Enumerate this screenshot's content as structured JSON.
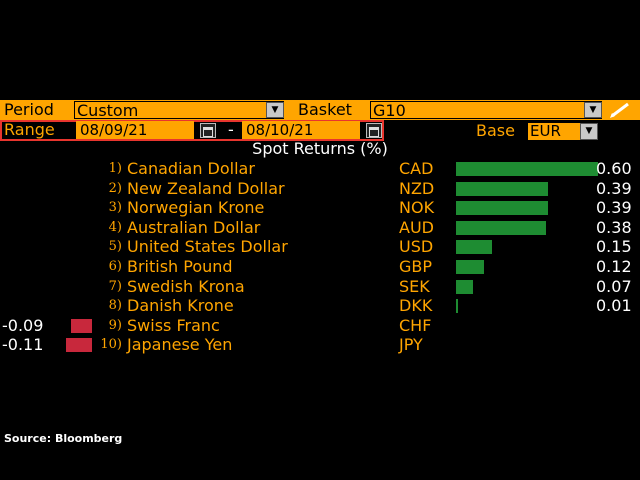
{
  "toolbar": {
    "period_label": "Period",
    "period_value": "Custom",
    "basket_label": "Basket",
    "basket_value": "G10",
    "edit_icon": "pencil-icon"
  },
  "range": {
    "label": "Range",
    "start": "08/09/21",
    "separator": "-",
    "end": "08/10/21",
    "calendar_icon": "calendar-icon"
  },
  "base": {
    "label": "Base",
    "value": "EUR"
  },
  "title": "Spot Returns (%)",
  "source": "Source: Bloomberg",
  "colors": {
    "positive": "#1e8c32",
    "negative": "#c8283c",
    "accent": "#ffa500"
  },
  "chart_data": {
    "type": "bar",
    "title": "Spot Returns (%)",
    "categories": [
      "Canadian Dollar",
      "New Zealand Dollar",
      "Norwegian Krone",
      "Australian Dollar",
      "United States Dollar",
      "British Pound",
      "Swedish Krona",
      "Danish Krone",
      "Swiss Franc",
      "Japanese Yen"
    ],
    "codes": [
      "CAD",
      "NZD",
      "NOK",
      "AUD",
      "USD",
      "GBP",
      "SEK",
      "DKK",
      "CHF",
      "JPY"
    ],
    "ranks": [
      "1)",
      "2)",
      "3)",
      "4)",
      "5)",
      "6)",
      "7)",
      "8)",
      "9)",
      "10)"
    ],
    "values": [
      0.6,
      0.39,
      0.39,
      0.38,
      0.15,
      0.12,
      0.07,
      0.01,
      -0.09,
      -0.11
    ],
    "value_labels": [
      "0.60",
      "0.39",
      "0.39",
      "0.38",
      "0.15",
      "0.12",
      "0.07",
      "0.01",
      "-0.09",
      "-0.11"
    ]
  }
}
